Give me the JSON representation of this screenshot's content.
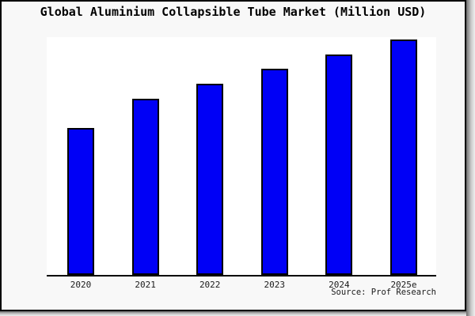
{
  "window": {
    "title": "Global Aluminium Collapsible Tube Market (Million USD)"
  },
  "chart_data": {
    "type": "bar",
    "title": "Global Aluminium Collapsible Tube Market (Million USD)",
    "categories": [
      "2020",
      "2021",
      "2022",
      "2023",
      "2024",
      "2025e"
    ],
    "values": [
      62.7,
      75.0,
      81.3,
      87.7,
      93.7,
      100.0
    ],
    "values_note": "No y-axis ticks, labels or gridlines are shown in the chart; values are relative bar heights expressed as % of the tallest bar (2025e = 100).",
    "unit": "Million USD",
    "xlabel": "",
    "ylabel": "",
    "legend": false,
    "grid": false,
    "source_label": "Source: Prof Research",
    "colors": {
      "bar_fill": "#0000f6",
      "bar_border": "#000000",
      "axis": "#000000",
      "plot_background": "#ffffff",
      "card_background": "#f8f8f8",
      "frame": "#000000",
      "shadow": "#6e6e6e"
    }
  }
}
